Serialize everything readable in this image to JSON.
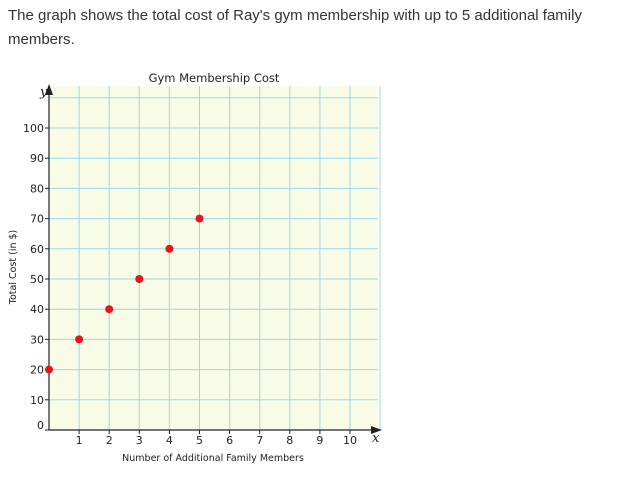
{
  "prompt": "The graph shows the total cost of Ray's gym membership with up to 5 additional family members.",
  "chart_data": {
    "type": "scatter",
    "title": "Gym Membership Cost",
    "xlabel": "Number of Additional Family Members",
    "ylabel": "Total Cost (in $)",
    "x_axis_letter": "x",
    "y_axis_letter": "y",
    "xlim": [
      0,
      11
    ],
    "ylim": [
      0,
      110
    ],
    "x_ticks": [
      1,
      2,
      3,
      4,
      5,
      6,
      7,
      8,
      9,
      10
    ],
    "y_ticks": [
      0,
      10,
      20,
      30,
      40,
      50,
      60,
      70,
      80,
      90,
      100
    ],
    "grid": true,
    "background_color": "#f8fbe6",
    "grid_color": "#9ed8e8",
    "point_color": "#e8141b",
    "points": [
      {
        "x": 0,
        "y": 20
      },
      {
        "x": 1,
        "y": 30
      },
      {
        "x": 2,
        "y": 40
      },
      {
        "x": 3,
        "y": 50
      },
      {
        "x": 4,
        "y": 60
      },
      {
        "x": 5,
        "y": 70
      }
    ]
  }
}
